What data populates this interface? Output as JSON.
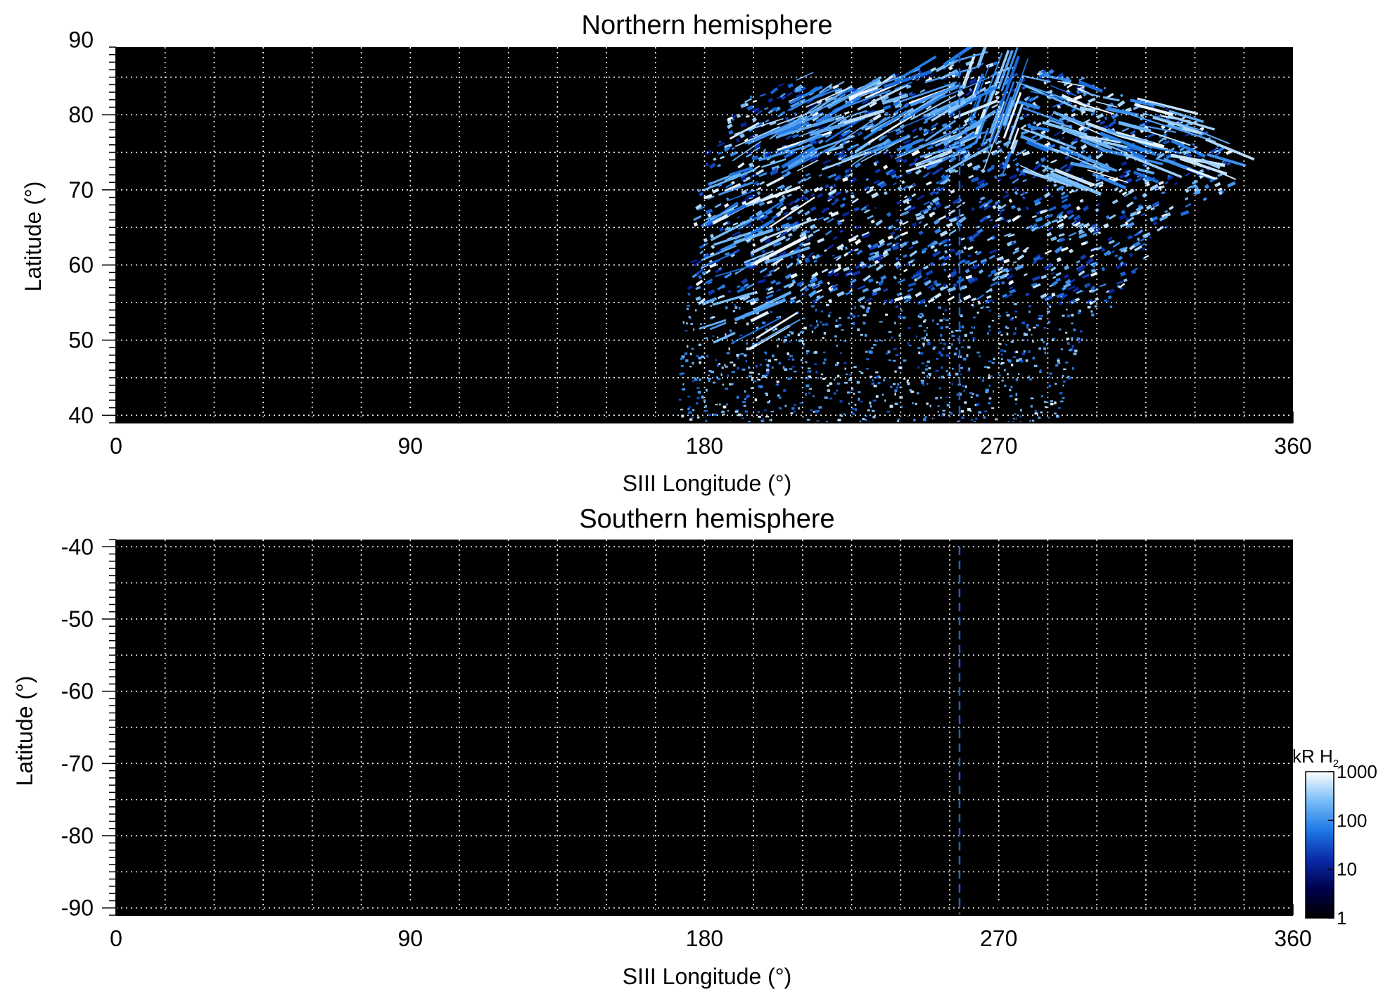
{
  "chart_data": [
    {
      "type": "heatmap",
      "title": "Northern hemisphere",
      "xlabel": "SIII Longitude (°)",
      "ylabel": "Latitude (°)",
      "xlim": [
        0,
        360
      ],
      "ylim": [
        39,
        89
      ],
      "x_ticks": [
        0,
        90,
        180,
        270,
        360
      ],
      "y_ticks": [
        40,
        50,
        60,
        70,
        80,
        90
      ],
      "x_tick_labels": [
        "0",
        "90",
        "180",
        "270",
        "360"
      ],
      "y_tick_labels": [
        "40",
        "50",
        "60",
        "70",
        "80",
        "90"
      ],
      "grid": true,
      "grid_style": "dotted",
      "grid_step_x": 15,
      "grid_step_y": 5,
      "reference_longitude": 258,
      "emission_region": {
        "description_outline": [
          [
            172,
            39
          ],
          [
            172,
            44
          ],
          [
            173,
            52
          ],
          [
            175,
            60
          ],
          [
            177,
            68
          ],
          [
            180,
            75
          ],
          [
            185,
            79
          ],
          [
            195,
            83
          ],
          [
            210,
            85
          ],
          [
            225,
            84
          ],
          [
            240,
            86
          ],
          [
            255,
            87
          ],
          [
            270,
            87
          ],
          [
            285,
            86
          ],
          [
            300,
            84
          ],
          [
            315,
            82
          ],
          [
            330,
            79
          ],
          [
            340,
            75
          ],
          [
            340,
            70
          ],
          [
            328,
            68
          ],
          [
            318,
            63
          ],
          [
            310,
            58
          ],
          [
            300,
            52
          ],
          [
            292,
            46
          ],
          [
            287,
            39
          ]
        ],
        "bright_arc_longitude_range": [
          175,
          340
        ],
        "bright_arc_latitude_range": [
          72,
          87
        ]
      }
    },
    {
      "type": "heatmap",
      "title": "Southern hemisphere",
      "xlabel": "SIII Longitude (°)",
      "ylabel": "Latitude (°)",
      "xlim": [
        0,
        360
      ],
      "ylim": [
        -91,
        -39
      ],
      "x_ticks": [
        0,
        90,
        180,
        270,
        360
      ],
      "y_ticks": [
        -40,
        -50,
        -60,
        -70,
        -80,
        -90
      ],
      "x_tick_labels": [
        "0",
        "90",
        "180",
        "270",
        "360"
      ],
      "y_tick_labels": [
        "-40",
        "-50",
        "-60",
        "-70",
        "-80",
        "-90"
      ],
      "grid": true,
      "grid_style": "dotted",
      "grid_step_x": 15,
      "grid_step_y": 5,
      "reference_longitude": 258,
      "emission_region": null
    }
  ],
  "colorbar": {
    "label": "kR H",
    "label_subscript": "2",
    "scale": "log",
    "range": [
      1,
      1000
    ],
    "ticks": [
      1,
      10,
      100,
      1000
    ],
    "tick_labels": [
      "1",
      "10",
      "100",
      "1000"
    ],
    "colors": [
      "#000000",
      "#00004d",
      "#0a2aa8",
      "#1e78e6",
      "#78bdf7",
      "#ffffff"
    ]
  },
  "colors": {
    "background": "#000000",
    "grid": "#ffffff",
    "reference_line": "#1f5fd6"
  }
}
